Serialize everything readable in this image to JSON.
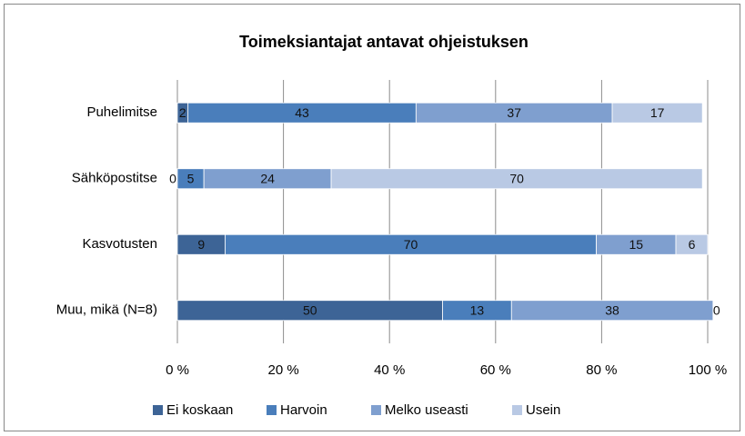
{
  "chart_data": {
    "type": "stacked_bar_horizontal",
    "title": "Toimeksiantajat antavat ohjeistuksen",
    "categories": [
      "Puhelimitse",
      "Sähköpostitse",
      "Kasvotusten",
      "Muu, mikä (N=8)"
    ],
    "series": [
      {
        "name": "Ei koskaan",
        "color": "#3d6496",
        "values": [
          2,
          0,
          9,
          50
        ]
      },
      {
        "name": "Harvoin",
        "color": "#4a7ebb",
        "values": [
          43,
          5,
          70,
          13
        ]
      },
      {
        "name": "Melko useasti",
        "color": "#7f9fcf",
        "values": [
          37,
          24,
          15,
          38
        ]
      },
      {
        "name": "Usein",
        "color": "#b9c9e4",
        "values": [
          17,
          70,
          6,
          0
        ]
      }
    ],
    "xlim": [
      0,
      100
    ],
    "xticks": [
      {
        "value": 0,
        "label": "0 %"
      },
      {
        "value": 20,
        "label": "20 %"
      },
      {
        "value": 40,
        "label": "40 %"
      },
      {
        "value": 60,
        "label": "60 %"
      },
      {
        "value": 80,
        "label": "80 %"
      },
      {
        "value": 100,
        "label": "100 %"
      }
    ],
    "grid": true,
    "legend": "bottom"
  }
}
